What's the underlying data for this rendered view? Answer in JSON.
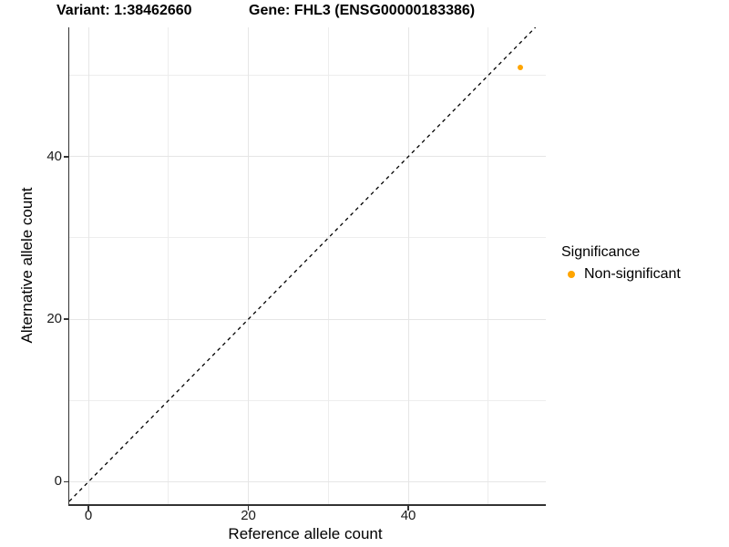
{
  "header": {
    "variant_title": "Variant: 1:38462660",
    "gene_title": "Gene: FHL3 (ENSG00000183386)"
  },
  "chart_data": {
    "type": "scatter",
    "title": "Variant: 1:38462660   Gene: FHL3 (ENSG00000183386)",
    "xlabel": "Reference allele count",
    "ylabel": "Alternative allele count",
    "xlim": [
      -2.4,
      57.2
    ],
    "ylim": [
      -2.75,
      55.9
    ],
    "x_ticks": [
      0,
      20,
      40
    ],
    "y_ticks": [
      0,
      20,
      40
    ],
    "x_minor_gridlines": [
      10,
      30,
      50
    ],
    "y_minor_gridlines": [
      10,
      30,
      50
    ],
    "grid": "on",
    "identity_line": {
      "equation": "y = x",
      "style": "dashed",
      "color": "#000000"
    },
    "series": [
      {
        "name": "Non-significant",
        "color": "#FFA500",
        "points": [
          [
            54,
            51
          ]
        ]
      }
    ],
    "legend": {
      "title": "Significance",
      "position": "right",
      "items": [
        {
          "label": "Non-significant",
          "color": "#FFA500"
        }
      ]
    }
  },
  "colors": {
    "axis_line": "#333333",
    "grid_major": "#e6e6e6",
    "grid_minor": "#ededed",
    "point_orange": "#FFA500",
    "dashed_line": "#000000"
  }
}
